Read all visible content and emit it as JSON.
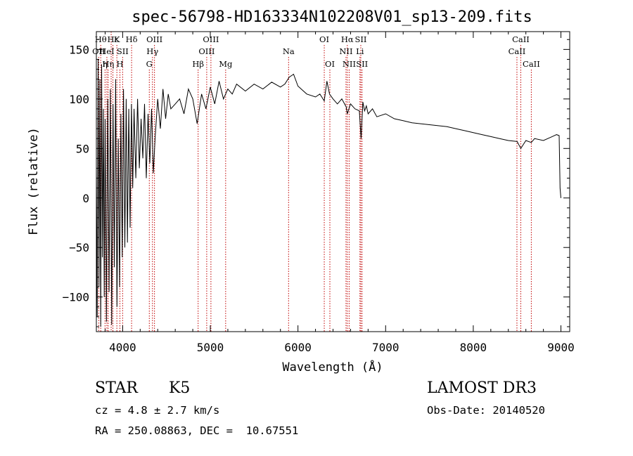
{
  "chart_data": {
    "type": "line",
    "title": "spec-56798-HD163334N102208V01_sp13-209.fits",
    "xlabel": "Wavelength (Å)",
    "ylabel": "Flux (relative)",
    "xlim": [
      3700,
      9100
    ],
    "ylim": [
      -135,
      168
    ],
    "x_ticks": [
      4000,
      5000,
      6000,
      7000,
      8000,
      9000
    ],
    "y_ticks": [
      -100,
      -50,
      0,
      50,
      100,
      150
    ],
    "grid": false,
    "series": [
      {
        "x": [
          3700,
          3710,
          3720,
          3730,
          3740,
          3750,
          3760,
          3770,
          3780,
          3790,
          3800,
          3815,
          3830,
          3845,
          3860,
          3875,
          3890,
          3905,
          3920,
          3935,
          3950,
          3965,
          3980,
          3995,
          4010,
          4025,
          4040,
          4055,
          4070,
          4085,
          4100,
          4115,
          4130,
          4150,
          4170,
          4190,
          4210,
          4230,
          4250,
          4270,
          4290,
          4310,
          4330,
          4350,
          4370,
          4400,
          4430,
          4460,
          4490,
          4520,
          4550,
          4600,
          4650,
          4700,
          4750,
          4800,
          4850,
          4900,
          4950,
          5000,
          5050,
          5100,
          5150,
          5200,
          5250,
          5300,
          5400,
          5500,
          5600,
          5700,
          5800,
          5850,
          5900,
          5950,
          6000,
          6100,
          6200,
          6250,
          6300,
          6330,
          6360,
          6400,
          6450,
          6500,
          6550,
          6563,
          6600,
          6650,
          6700,
          6720,
          6740,
          6760,
          6780,
          6800,
          6850,
          6900,
          7000,
          7100,
          7200,
          7300,
          7400,
          7500,
          7600,
          7700,
          7800,
          7900,
          8000,
          8100,
          8200,
          8300,
          8400,
          8500,
          8542,
          8600,
          8662,
          8700,
          8800,
          8900,
          8950,
          8980,
          8990,
          9000
        ],
        "values": [
          30,
          -120,
          140,
          -90,
          120,
          -130,
          135,
          -60,
          90,
          -100,
          80,
          -125,
          100,
          -95,
          110,
          -128,
          95,
          -70,
          120,
          -110,
          60,
          -90,
          85,
          -60,
          110,
          -50,
          100,
          -45,
          90,
          -30,
          95,
          10,
          90,
          20,
          100,
          30,
          80,
          40,
          95,
          20,
          85,
          35,
          90,
          25,
          60,
          100,
          70,
          110,
          80,
          105,
          90,
          95,
          100,
          85,
          110,
          100,
          75,
          105,
          90,
          112,
          95,
          118,
          100,
          110,
          105,
          115,
          108,
          115,
          110,
          117,
          112,
          115,
          122,
          125,
          113,
          105,
          102,
          105,
          98,
          118,
          105,
          100,
          95,
          100,
          92,
          85,
          95,
          90,
          88,
          60,
          97,
          88,
          93,
          85,
          90,
          82,
          85,
          80,
          78,
          76,
          75,
          74,
          73,
          72,
          70,
          68,
          66,
          64,
          62,
          60,
          58,
          57,
          50,
          58,
          56,
          60,
          58,
          62,
          64,
          63,
          10,
          0
        ]
      }
    ],
    "spectral_lines": [
      {
        "x": 3727,
        "label": "OII",
        "row": 1
      },
      {
        "x": 3750,
        "label": "Hθ",
        "row": 0
      },
      {
        "x": 3799,
        "label": "η",
        "row": 2
      },
      {
        "x": 3820,
        "label": "HeI",
        "row": 1
      },
      {
        "x": 3835,
        "label": "Hη",
        "row": 2
      },
      {
        "x": 3869,
        "label": "",
        "row": 0
      },
      {
        "x": 3889,
        "label": "Hε",
        "row": 0
      },
      {
        "x": 3934,
        "label": "K",
        "row": 0
      },
      {
        "x": 3969,
        "label": "H",
        "row": 2
      },
      {
        "x": 4000,
        "label": "SII",
        "row": 1
      },
      {
        "x": 4102,
        "label": "Hδ",
        "row": 0
      },
      {
        "x": 4304,
        "label": "G",
        "row": 2
      },
      {
        "x": 4340,
        "label": "Hγ",
        "row": 1
      },
      {
        "x": 4363,
        "label": "OIII",
        "row": 0
      },
      {
        "x": 4861,
        "label": "Hβ",
        "row": 2
      },
      {
        "x": 4959,
        "label": "OIII",
        "row": 1
      },
      {
        "x": 5007,
        "label": "OIII",
        "row": 0
      },
      {
        "x": 5175,
        "label": "Mg",
        "row": 2
      },
      {
        "x": 5893,
        "label": "Na",
        "row": 1
      },
      {
        "x": 6300,
        "label": "OI",
        "row": 0
      },
      {
        "x": 6364,
        "label": "OI",
        "row": 2
      },
      {
        "x": 6548,
        "label": "NII",
        "row": 1
      },
      {
        "x": 6563,
        "label": "Hα",
        "row": 0
      },
      {
        "x": 6584,
        "label": "NII",
        "row": 2
      },
      {
        "x": 6707,
        "label": "Li",
        "row": 1
      },
      {
        "x": 6717,
        "label": "SII",
        "row": 0
      },
      {
        "x": 6731,
        "label": "SII",
        "row": 2
      },
      {
        "x": 8498,
        "label": "CaII",
        "row": 1
      },
      {
        "x": 8542,
        "label": "CaII",
        "row": 0
      },
      {
        "x": 8662,
        "label": "CaII",
        "row": 2
      }
    ],
    "colors": {
      "spectrum": "#000000",
      "line_markers": "#c00000",
      "axes": "#000000"
    }
  },
  "info": {
    "class": "STAR",
    "subclass": "K5",
    "survey": "LAMOST DR3",
    "cz": "cz = 4.8 ± 2.7 km/s",
    "obs_date": "Obs-Date: 20140520",
    "coords": "RA = 250.08863, DEC =  10.67551"
  }
}
